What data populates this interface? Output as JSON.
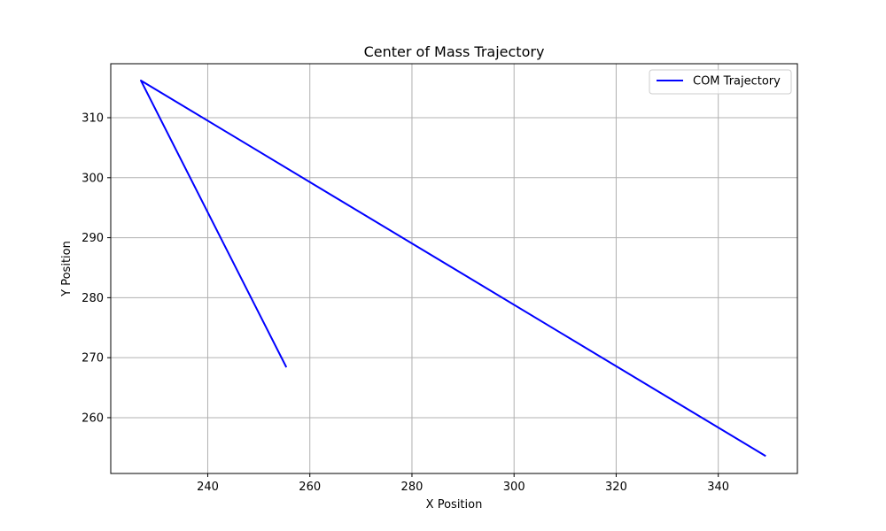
{
  "chart_data": {
    "type": "line",
    "title": "Center of Mass Trajectory",
    "xlabel": "X Position",
    "ylabel": "Y Position",
    "xlim": [
      221.0,
      355.5
    ],
    "ylim": [
      250.7,
      319.0
    ],
    "xticks": [
      240,
      260,
      280,
      300,
      320,
      340
    ],
    "yticks": [
      260,
      270,
      280,
      290,
      300,
      310
    ],
    "grid": true,
    "legend_position": "top-right",
    "series": [
      {
        "name": "COM Trajectory",
        "color": "#0000ff",
        "x": [
          255.4,
          226.9,
          349.3
        ],
        "y": [
          268.4,
          316.2,
          253.6
        ]
      }
    ]
  }
}
